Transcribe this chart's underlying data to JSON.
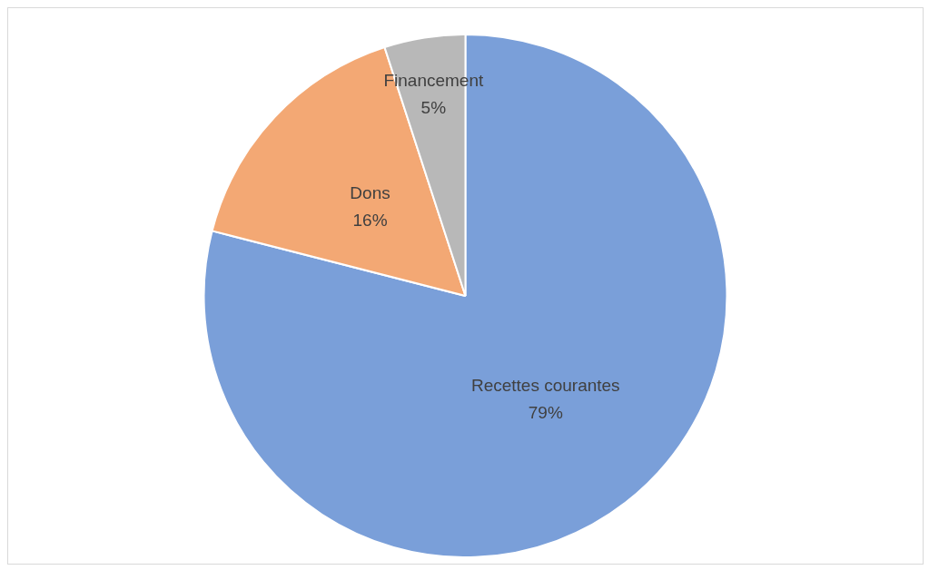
{
  "chart_data": {
    "type": "pie",
    "categories": [
      "Recettes courantes",
      "Dons",
      "Financement"
    ],
    "values": [
      79,
      16,
      5
    ],
    "value_labels": [
      "79%",
      "16%",
      "5%"
    ],
    "colors": [
      "#7a9fd9",
      "#f3a874",
      "#b8b8b8"
    ],
    "legend": false
  }
}
